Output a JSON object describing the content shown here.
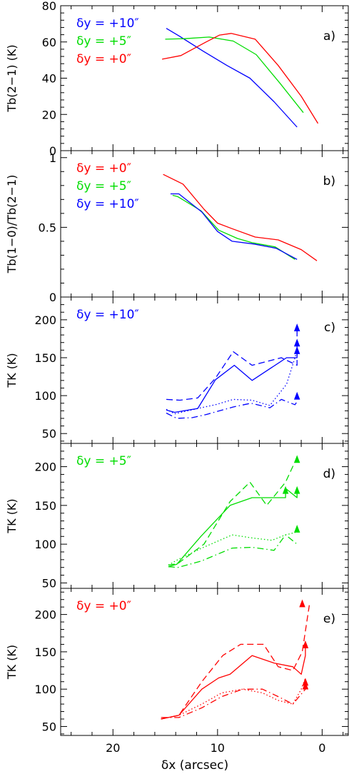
{
  "chart_data": {
    "xlabel": "δx (arcsec)",
    "xlim": [
      25,
      -2.5
    ],
    "xticks": [
      "20",
      "10",
      "0"
    ],
    "panels": [
      {
        "type": "line",
        "panel_label": "a)",
        "ylabel": "Tb(2−1) (K)",
        "ylim": [
          0,
          80
        ],
        "yticks": [
          "0",
          "20",
          "40",
          "60",
          "80"
        ],
        "legend": [
          "δy = +10″",
          "δy = +5″",
          "δy = +0″"
        ],
        "series": [
          {
            "name": "δy = +10″",
            "color": "#0000ff",
            "dash": "solid",
            "x": [
              14.9,
              13.6,
              11.4,
              9.1,
              6.9,
              4.6,
              2.4
            ],
            "y": [
              67.5,
              63,
              55,
              47,
              40,
              27,
              13
            ]
          },
          {
            "name": "δy = +5″",
            "color": "#00dd00",
            "dash": "solid",
            "x": [
              15,
              13.2,
              10.8,
              8.5,
              6.3,
              4.0,
              1.8
            ],
            "y": [
              61.5,
              61.8,
              62.7,
              60.5,
              53,
              37,
              21
            ]
          },
          {
            "name": "δy = +0″",
            "color": "#ff0000",
            "dash": "solid",
            "x": [
              15.3,
              13.5,
              11.1,
              9.8,
              8.7,
              6.4,
              4.2,
              2.0,
              0.4
            ],
            "y": [
              50.5,
              52.5,
              60,
              63.8,
              64.7,
              61.5,
              47,
              30,
              15
            ]
          }
        ]
      },
      {
        "type": "line",
        "panel_label": "b)",
        "ylabel": "Tb(1−0)/Tb(2−1)",
        "ylim": [
          0,
          1.05
        ],
        "yticks": [
          "0",
          "0.5",
          "1"
        ],
        "legend": [
          "δy = +0″",
          "δy = +5″",
          "δy = +10″"
        ],
        "series": [
          {
            "name": "δy = +0″",
            "color": "#ff0000",
            "dash": "solid",
            "x": [
              15.2,
              13.3,
              11.3,
              10.0,
              8.6,
              6.4,
              4.2,
              2.0,
              0.5
            ],
            "y": [
              0.88,
              0.81,
              0.63,
              0.53,
              0.49,
              0.43,
              0.41,
              0.34,
              0.26
            ]
          },
          {
            "name": "δy = +5″",
            "color": "#00dd00",
            "dash": "solid",
            "x": [
              14.3,
              13.8,
              11.6,
              9.9,
              8.1,
              6.7,
              4.5,
              2.6
            ],
            "y": [
              0.73,
              0.72,
              0.62,
              0.48,
              0.42,
              0.39,
              0.36,
              0.27
            ]
          },
          {
            "name": "δy = +10″",
            "color": "#0000ff",
            "dash": "solid",
            "x": [
              14.5,
              13.7,
              11.5,
              10.0,
              8.6,
              6.5,
              4.4,
              2.4
            ],
            "y": [
              0.74,
              0.74,
              0.61,
              0.47,
              0.4,
              0.38,
              0.35,
              0.27
            ]
          }
        ]
      },
      {
        "type": "line",
        "panel_label": "c)",
        "ylabel": "TK (K)",
        "ylim": [
          37,
          230
        ],
        "yticks": [
          "50",
          "100",
          "150",
          "200"
        ],
        "legend": [
          "δy = +10″"
        ],
        "arrows": {
          "color": "#0000ff",
          "x": [
            2.4,
            2.4,
            2.4,
            2.4
          ],
          "y": [
            190,
            170,
            160,
            100
          ]
        },
        "series": [
          {
            "color": "#0000ff",
            "dash": "solid",
            "x": [
              14.9,
              14.1,
              11.9,
              10.2,
              8.4,
              6.7,
              3.4,
              2.4,
              2.4
            ],
            "y": [
              81,
              78,
              83,
              121,
              140,
              120,
              150,
              150,
              172
            ]
          },
          {
            "color": "#0000ff",
            "dash": "dashed",
            "x": [
              14.9,
              13.6,
              11.9,
              10.2,
              8.5,
              6.7,
              3.9,
              2.4,
              2.4
            ],
            "y": [
              95,
              94,
              97,
              123,
              158,
              140,
              150,
              140,
              192
            ]
          },
          {
            "color": "#0000ff",
            "dash": "dotted",
            "x": [
              14.9,
              14.1,
              11.9,
              10.2,
              8.5,
              6.7,
              5.0,
              3.4,
              2.6,
              2.4
            ],
            "y": [
              82,
              76,
              83,
              88,
              95,
              94,
              87,
              115,
              150,
              160
            ]
          },
          {
            "color": "#0000ff",
            "dash": "dashdot",
            "x": [
              14.9,
              13.9,
              12.4,
              11.1,
              8.5,
              6.8,
              5.0,
              3.9,
              2.6,
              2.4
            ],
            "y": [
              77,
              70,
              71,
              75,
              85,
              90,
              84,
              95,
              88,
              92
            ]
          }
        ]
      },
      {
        "type": "line",
        "panel_label": "d)",
        "ylabel": "TK (K)",
        "ylim": [
          43,
          230
        ],
        "yticks": [
          "50",
          "100",
          "150",
          "200"
        ],
        "legend": [
          "δy = +5″"
        ],
        "arrows": {
          "color": "#00dd00",
          "x": [
            3.5,
            2.4,
            2.4,
            2.4
          ],
          "y": [
            170,
            170,
            210,
            120
          ]
        },
        "series": [
          {
            "color": "#00dd00",
            "dash": "solid",
            "x": [
              14.7,
              13.9,
              11.6,
              8.8,
              6.7,
              4.6,
              3.5,
              3.5,
              2.4,
              2.4
            ],
            "y": [
              71,
              74,
              110,
              150,
              160,
              160,
              160,
              172,
              160,
              172
            ]
          },
          {
            "color": "#00dd00",
            "dash": "dashed",
            "x": [
              14.7,
              13.8,
              11.3,
              8.8,
              6.9,
              5.3,
              3.5,
              2.4
            ],
            "y": [
              73,
              75,
              100,
              155,
              180,
              150,
              180,
              212
            ]
          },
          {
            "color": "#00dd00",
            "dash": "dotted",
            "x": [
              14.7,
              13.8,
              11.5,
              8.6,
              6.7,
              4.8,
              3.5,
              2.6,
              2.4
            ],
            "y": [
              73,
              80,
              95,
              112,
              108,
              105,
              112,
              115,
              120
            ]
          },
          {
            "color": "#00dd00",
            "dash": "dashdot",
            "x": [
              14.7,
              13.8,
              11.6,
              8.6,
              6.7,
              4.6,
              3.5,
              2.4
            ],
            "y": [
              71,
              70,
              78,
              95,
              96,
              92,
              112,
              100
            ]
          }
        ]
      },
      {
        "type": "line",
        "panel_label": "e)",
        "ylabel": "TK (K)",
        "ylim": [
          38,
          235
        ],
        "yticks": [
          "50",
          "100",
          "150",
          "200"
        ],
        "legend": [
          "δy = +0″"
        ],
        "arrows": {
          "color": "#ff0000",
          "x": [
            1.9,
            1.6,
            1.6,
            1.6
          ],
          "y": [
            215,
            160,
            110,
            105
          ]
        },
        "series": [
          {
            "color": "#ff0000",
            "dash": "solid",
            "x": [
              15.4,
              13.7,
              11.5,
              9.9,
              8.8,
              6.7,
              4.6,
              2.8,
              2.0,
              1.6,
              1.6
            ],
            "y": [
              60,
              65,
              100,
              115,
              120,
              145,
              135,
              130,
              120,
              145,
              162
            ]
          },
          {
            "color": "#ff0000",
            "dash": "dashed",
            "x": [
              15.4,
              13.7,
              11.5,
              9.5,
              7.8,
              5.6,
              4.2,
              2.8,
              1.9,
              1.2
            ],
            "y": [
              60,
              65,
              110,
              145,
              160,
              160,
              130,
              125,
              150,
              215
            ]
          },
          {
            "color": "#ff0000",
            "dash": "dotted",
            "x": [
              15.4,
              13.7,
              11.5,
              9.6,
              7.6,
              5.7,
              4.2,
              2.8,
              2.0,
              1.6
            ],
            "y": [
              60,
              65,
              80,
              95,
              100,
              95,
              85,
              80,
              100,
              115
            ]
          },
          {
            "color": "#ff0000",
            "dash": "dashdot",
            "x": [
              15.4,
              13.7,
              11.5,
              9.6,
              7.6,
              5.7,
              4.2,
              2.8,
              1.9,
              1.6
            ],
            "y": [
              62,
              62,
              75,
              90,
              100,
              100,
              90,
              80,
              95,
              100
            ]
          }
        ]
      }
    ]
  }
}
